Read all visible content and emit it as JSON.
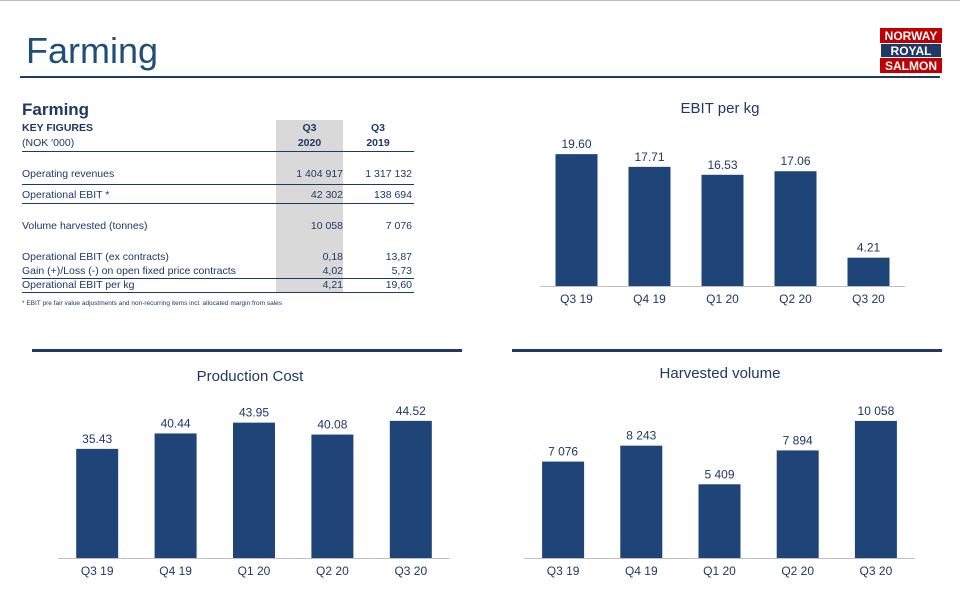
{
  "page": {
    "title": "Farming",
    "logo_text": [
      "NORWAY",
      "ROYAL",
      "SALMON"
    ]
  },
  "table": {
    "heading": "Farming",
    "col_header_label_1": "KEY FIGURES",
    "col_header_label_2": "(NOK '000)",
    "col1_line1": "Q3",
    "col1_line2": "2020",
    "col2_line1": "Q3",
    "col2_line2": "2019",
    "rows": [
      {
        "label": "Operating revenues",
        "q3_2020": "1 404 917",
        "q3_2019": "1 317 132"
      },
      {
        "label": "Operational EBIT *",
        "q3_2020": "42 302",
        "q3_2019": "138 694"
      },
      {
        "label": "Volume harvested (tonnes)",
        "q3_2020": "10 058",
        "q3_2019": "7 076"
      },
      {
        "label": "Operational EBIT (ex contracts)",
        "q3_2020": "0,18",
        "q3_2019": "13,87"
      },
      {
        "label": "Gain (+)/Loss (-) on open fixed price contracts",
        "q3_2020": "4,02",
        "q3_2019": "5,73"
      },
      {
        "label": "Operational EBIT per kg",
        "q3_2020": "4,21",
        "q3_2019": "19,60"
      }
    ],
    "footnote": "* EBIT pre fair value adjustments and non-recurring items incl. allocated margin from sales"
  },
  "colors": {
    "bar": "#1f4478",
    "text": "#1f3864",
    "shade": "#d9d9d9"
  },
  "chart_data": [
    {
      "type": "bar",
      "title": "EBIT per kg",
      "categories": [
        "Q3 19",
        "Q4 19",
        "Q1 20",
        "Q2 20",
        "Q3 20"
      ],
      "values": [
        19.6,
        17.71,
        16.53,
        17.06,
        4.21
      ],
      "labels": [
        "19.60",
        "17.71",
        "16.53",
        "17.06",
        "4.21"
      ],
      "xlabel": "",
      "ylabel": "",
      "ylim": [
        0,
        22
      ],
      "grid": false
    },
    {
      "type": "bar",
      "title": "Production Cost",
      "categories": [
        "Q3 19",
        "Q4 19",
        "Q1 20",
        "Q2 20",
        "Q3 20"
      ],
      "values": [
        35.43,
        40.44,
        43.95,
        40.08,
        44.52
      ],
      "labels": [
        "35.43",
        "40.44",
        "43.95",
        "40.08",
        "44.52"
      ],
      "xlabel": "",
      "ylabel": "",
      "ylim": [
        0,
        50
      ],
      "grid": false
    },
    {
      "type": "bar",
      "title": "Harvested volume",
      "categories": [
        "Q3 19",
        "Q4 19",
        "Q1 20",
        "Q2 20",
        "Q3 20"
      ],
      "values": [
        7076,
        8243,
        5409,
        7894,
        10058
      ],
      "labels": [
        "7 076",
        "8 243",
        "5 409",
        "7 894",
        "10 058"
      ],
      "xlabel": "",
      "ylabel": "",
      "ylim": [
        0,
        11300
      ],
      "grid": false
    }
  ]
}
